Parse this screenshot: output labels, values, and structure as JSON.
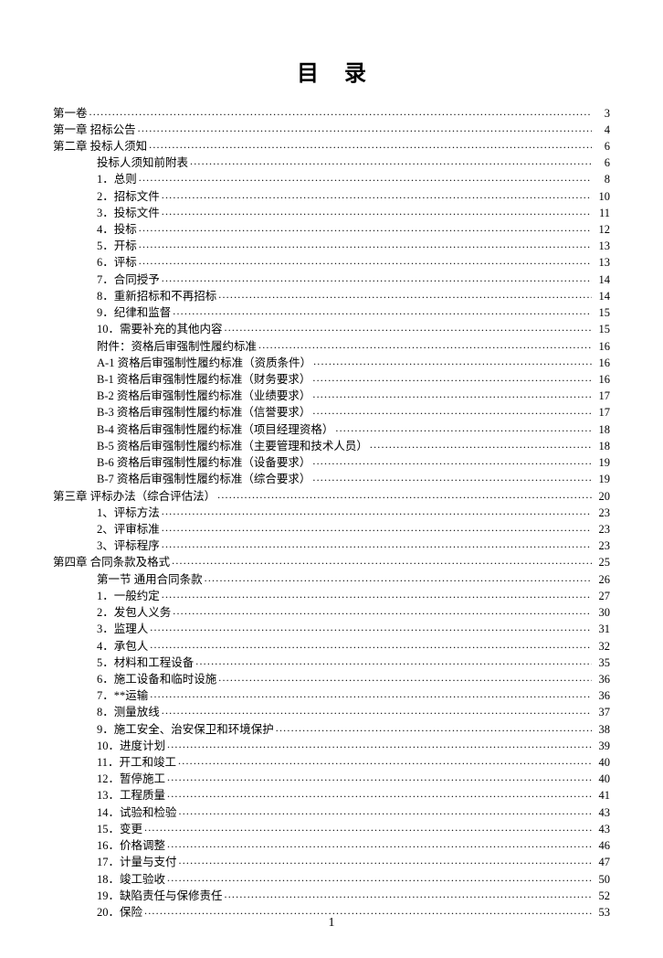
{
  "title": "目录",
  "page_number": "1",
  "entries": [
    {
      "label": "第一卷",
      "page": "3",
      "indent": 0
    },
    {
      "label": "第一章 招标公告",
      "page": "4",
      "indent": 0
    },
    {
      "label": "第二章 投标人须知",
      "page": "6",
      "indent": 0
    },
    {
      "label": "投标人须知前附表",
      "page": "6",
      "indent": 1
    },
    {
      "label": "1．总则",
      "page": "8",
      "indent": 1
    },
    {
      "label": "2．招标文件",
      "page": "10",
      "indent": 1
    },
    {
      "label": "3．投标文件",
      "page": "11",
      "indent": 1
    },
    {
      "label": "4．投标",
      "page": "12",
      "indent": 1
    },
    {
      "label": "5．开标",
      "page": "13",
      "indent": 1
    },
    {
      "label": "6．评标",
      "page": "13",
      "indent": 1
    },
    {
      "label": "7．合同授予",
      "page": "14",
      "indent": 1
    },
    {
      "label": "8．重新招标和不再招标",
      "page": "14",
      "indent": 1
    },
    {
      "label": "9．纪律和监督",
      "page": "15",
      "indent": 1
    },
    {
      "label": "10．需要补充的其他内容",
      "page": "15",
      "indent": 1
    },
    {
      "label": "附件：资格后审强制性履约标准",
      "page": "16",
      "indent": 1
    },
    {
      "label": "A-1 资格后审强制性履约标准（资质条件）",
      "page": "16",
      "indent": 1
    },
    {
      "label": "B-1 资格后审强制性履约标准（财务要求）",
      "page": "16",
      "indent": 1
    },
    {
      "label": "B-2 资格后审强制性履约标准（业绩要求）",
      "page": "17",
      "indent": 1
    },
    {
      "label": "B-3 资格后审强制性履约标准（信誉要求）",
      "page": "17",
      "indent": 1
    },
    {
      "label": "B-4 资格后审强制性履约标准（项目经理资格）",
      "page": "18",
      "indent": 1
    },
    {
      "label": "B-5 资格后审强制性履约标准（主要管理和技术人员）",
      "page": "18",
      "indent": 1
    },
    {
      "label": "B-6 资格后审强制性履约标准（设备要求）",
      "page": "19",
      "indent": 1
    },
    {
      "label": "B-7 资格后审强制性履约标准（综合要求）",
      "page": "19",
      "indent": 1
    },
    {
      "label": "第三章 评标办法（综合评估法）",
      "page": "20",
      "indent": 0
    },
    {
      "label": "1、评标方法",
      "page": "23",
      "indent": 1
    },
    {
      "label": "2、评审标准",
      "page": "23",
      "indent": 1
    },
    {
      "label": "3、评标程序",
      "page": "23",
      "indent": 1
    },
    {
      "label": "第四章 合同条款及格式",
      "page": "25",
      "indent": 0
    },
    {
      "label": "第一节 通用合同条款",
      "page": "26",
      "indent": 1
    },
    {
      "label": "1．一般约定",
      "page": "27",
      "indent": 1
    },
    {
      "label": "2．发包人义务",
      "page": "30",
      "indent": 1
    },
    {
      "label": "3．监理人",
      "page": "31",
      "indent": 1
    },
    {
      "label": "4．承包人",
      "page": "32",
      "indent": 1
    },
    {
      "label": "5．材料和工程设备",
      "page": "35",
      "indent": 1
    },
    {
      "label": "6．施工设备和临时设施",
      "page": "36",
      "indent": 1
    },
    {
      "label": "7．**运输",
      "page": "36",
      "indent": 1
    },
    {
      "label": "8．测量放线",
      "page": "37",
      "indent": 1
    },
    {
      "label": "9．施工安全、治安保卫和环境保护",
      "page": "38",
      "indent": 1
    },
    {
      "label": "10．进度计划",
      "page": "39",
      "indent": 1
    },
    {
      "label": "11．开工和竣工",
      "page": "40",
      "indent": 1
    },
    {
      "label": "12．暂停施工",
      "page": "40",
      "indent": 1
    },
    {
      "label": "13．工程质量",
      "page": "41",
      "indent": 1
    },
    {
      "label": "14．试验和检验",
      "page": "43",
      "indent": 1
    },
    {
      "label": "15．变更",
      "page": "43",
      "indent": 1
    },
    {
      "label": "16．价格调整",
      "page": "46",
      "indent": 1
    },
    {
      "label": "17．计量与支付",
      "page": "47",
      "indent": 1
    },
    {
      "label": "18．竣工验收",
      "page": "50",
      "indent": 1
    },
    {
      "label": "19．缺陷责任与保修责任",
      "page": "52",
      "indent": 1
    },
    {
      "label": "20．保险",
      "page": "53",
      "indent": 1
    }
  ]
}
